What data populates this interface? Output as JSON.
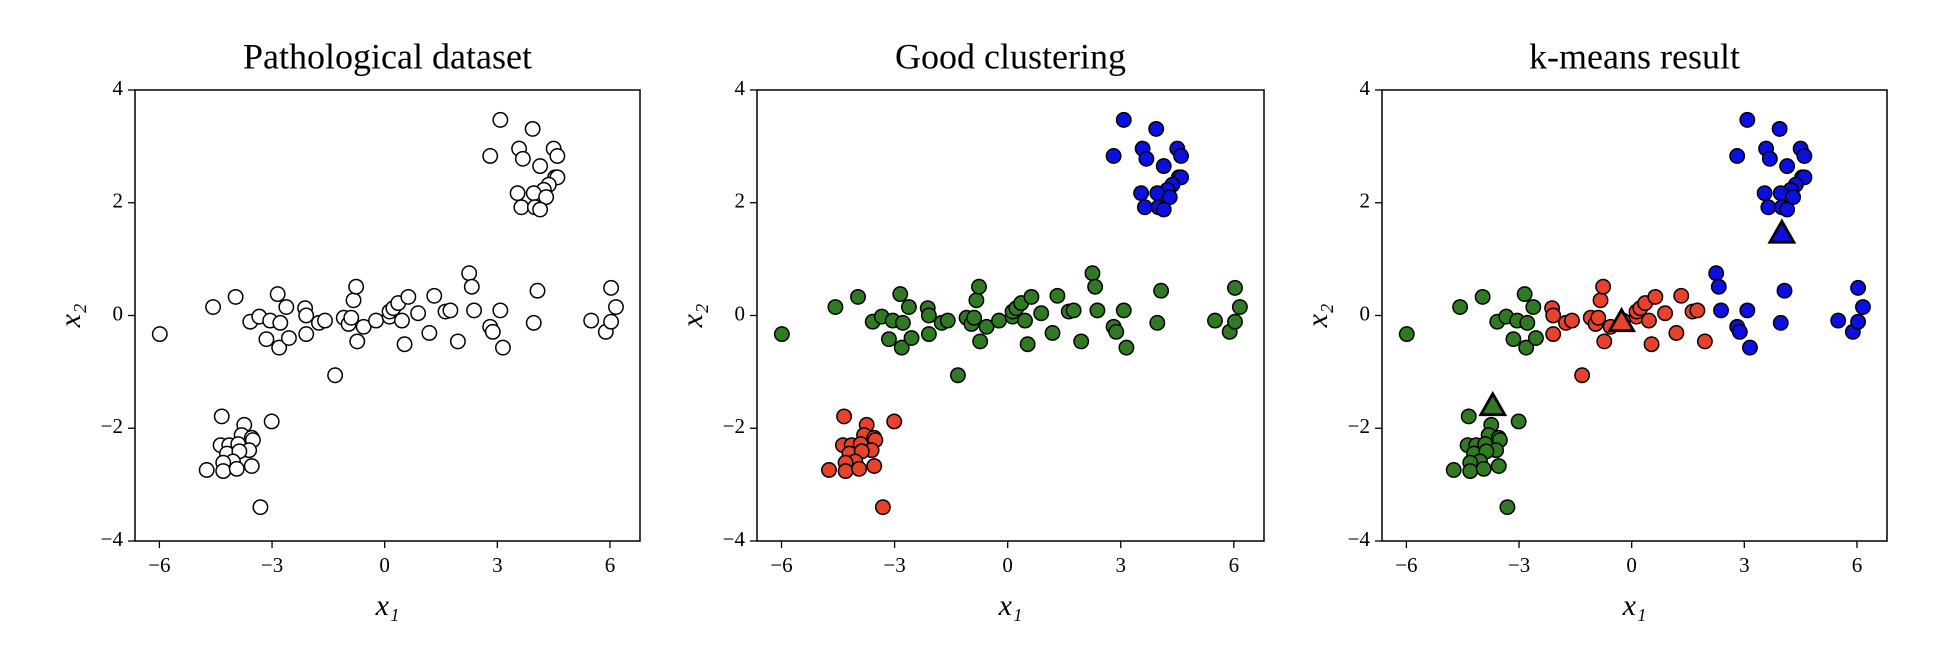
{
  "chart_data": [
    {
      "type": "scatter",
      "title": "Pathological dataset",
      "xlabel": "x₁",
      "ylabel": "x₂",
      "xlim": [
        -6.65,
        6.8
      ],
      "ylim": [
        -4,
        4
      ],
      "xticks": [
        {
          "value": -6,
          "label": "−6"
        },
        {
          "value": -3,
          "label": "−3"
        },
        0,
        3,
        6
      ],
      "yticks": [
        {
          "value": -4,
          "label": "−4"
        },
        {
          "value": -2,
          "label": "−2"
        },
        0,
        2,
        4
      ],
      "series": [
        {
          "color": "#ffffff",
          "marker": "circle",
          "x": [
            3.08,
            3.94,
            2.81,
            3.58,
            4.5,
            3.68,
            4.6,
            4.14,
            4.54,
            4.6,
            4.37,
            4.24,
            3.54,
            3.97,
            4.3,
            3.64,
            4.0,
            4.14,
            -4.34,
            -3.74,
            -3.01,
            -3.81,
            -3.54,
            -4.37,
            -4.14,
            -3.9,
            -3.51,
            -3.61,
            -4.2,
            -3.87,
            -4.04,
            -4.3,
            -3.54,
            -4.74,
            -4.3,
            -3.94,
            -3.31,
            -5.99,
            -4.57,
            -3.97,
            -3.58,
            -3.34,
            -3.15,
            -3.05,
            -2.85,
            -2.81,
            -2.78,
            -2.62,
            -2.55,
            -2.12,
            -2.09,
            -2.09,
            -1.75,
            -1.59,
            -1.32,
            -1.09,
            -0.96,
            -0.89,
            -0.83,
            -0.76,
            -0.73,
            -0.56,
            -0.23,
            0.13,
            0.13,
            0.23,
            0.36,
            0.46,
            0.53,
            0.63,
            0.89,
            1.19,
            1.32,
            1.62,
            1.75,
            1.95,
            2.25,
            2.32,
            2.38,
            2.81,
            2.88,
            3.08,
            3.15,
            3.97,
            4.07,
            5.5,
            5.89,
            6.03,
            6.03,
            6.16
          ],
          "y": [
            3.47,
            3.31,
            2.83,
            2.96,
            2.96,
            2.78,
            2.83,
            2.65,
            2.45,
            2.45,
            2.32,
            2.23,
            2.17,
            2.17,
            2.1,
            1.92,
            1.92,
            1.88,
            -1.79,
            -1.94,
            -1.88,
            -2.12,
            -2.17,
            -2.3,
            -2.3,
            -2.28,
            -2.21,
            -2.39,
            -2.45,
            -2.41,
            -2.59,
            -2.61,
            -2.67,
            -2.74,
            -2.76,
            -2.72,
            -3.4,
            -0.33,
            0.15,
            0.33,
            -0.11,
            -0.02,
            -0.42,
            -0.09,
            0.38,
            -0.57,
            -0.13,
            0.15,
            -0.4,
            0.13,
            0,
            -0.33,
            -0.13,
            -0.09,
            -1.06,
            -0.04,
            -0.15,
            -0.04,
            0.27,
            0.51,
            -0.46,
            -0.2,
            -0.09,
            -0.02,
            0.07,
            0.13,
            0.22,
            -0.09,
            -0.51,
            0.33,
            0.04,
            -0.31,
            0.35,
            0.07,
            0.09,
            -0.46,
            0.75,
            0.51,
            0.09,
            -0.2,
            -0.29,
            0.09,
            -0.57,
            -0.13,
            0.44,
            -0.09,
            -0.29,
            0.49,
            -0.11,
            0.15
          ]
        }
      ]
    },
    {
      "type": "scatter",
      "title": "Good clustering",
      "xlabel": "x₁",
      "ylabel": "x₂",
      "xlim": [
        -6.65,
        6.8
      ],
      "ylim": [
        -4,
        4
      ],
      "xticks": [
        {
          "value": -6,
          "label": "−6"
        },
        {
          "value": -3,
          "label": "−3"
        },
        0,
        3,
        6
      ],
      "yticks": [
        {
          "value": -4,
          "label": "−4"
        },
        {
          "value": -2,
          "label": "−2"
        },
        0,
        2,
        4
      ],
      "series": [
        {
          "color": "#0b0fe0",
          "marker": "circle",
          "x": [
            3.08,
            3.94,
            2.81,
            3.58,
            4.5,
            3.68,
            4.6,
            4.14,
            4.54,
            4.6,
            4.37,
            4.24,
            3.54,
            3.97,
            4.3,
            3.64,
            4.0,
            4.14
          ],
          "y": [
            3.47,
            3.31,
            2.83,
            2.96,
            2.96,
            2.78,
            2.83,
            2.65,
            2.45,
            2.45,
            2.32,
            2.23,
            2.17,
            2.17,
            2.1,
            1.92,
            1.92,
            1.88
          ]
        },
        {
          "color": "#2f7a22",
          "marker": "circle",
          "x": [
            -5.99,
            -4.57,
            -3.97,
            -3.58,
            -3.34,
            -3.15,
            -3.05,
            -2.85,
            -2.81,
            -2.78,
            -2.62,
            -2.55,
            -2.12,
            -2.09,
            -2.09,
            -1.75,
            -1.59,
            -1.32,
            -1.09,
            -0.96,
            -0.89,
            -0.83,
            -0.76,
            -0.73,
            -0.56,
            -0.23,
            0.13,
            0.13,
            0.23,
            0.36,
            0.46,
            0.53,
            0.63,
            0.89,
            1.19,
            1.32,
            1.62,
            1.75,
            1.95,
            2.25,
            2.32,
            2.38,
            2.81,
            2.88,
            3.08,
            3.15,
            3.97,
            4.07,
            5.5,
            5.89,
            6.03,
            6.03,
            6.16
          ],
          "y": [
            -0.33,
            0.15,
            0.33,
            -0.11,
            -0.02,
            -0.42,
            -0.09,
            0.38,
            -0.57,
            -0.13,
            0.15,
            -0.4,
            0.13,
            0,
            -0.33,
            -0.13,
            -0.09,
            -1.06,
            -0.04,
            -0.15,
            -0.04,
            0.27,
            0.51,
            -0.46,
            -0.2,
            -0.09,
            -0.02,
            0.07,
            0.13,
            0.22,
            -0.09,
            -0.51,
            0.33,
            0.04,
            -0.31,
            0.35,
            0.07,
            0.09,
            -0.46,
            0.75,
            0.51,
            0.09,
            -0.2,
            -0.29,
            0.09,
            -0.57,
            -0.13,
            0.44,
            -0.09,
            -0.29,
            0.49,
            -0.11,
            0.15
          ]
        },
        {
          "color": "#e8412c",
          "marker": "circle",
          "x": [
            -4.34,
            -3.74,
            -3.01,
            -3.81,
            -3.54,
            -4.37,
            -4.14,
            -3.9,
            -3.51,
            -3.61,
            -4.2,
            -3.87,
            -4.04,
            -4.3,
            -3.54,
            -4.74,
            -4.3,
            -3.94,
            -3.31
          ],
          "y": [
            -1.79,
            -1.94,
            -1.88,
            -2.12,
            -2.17,
            -2.3,
            -2.3,
            -2.28,
            -2.21,
            -2.39,
            -2.45,
            -2.41,
            -2.59,
            -2.61,
            -2.67,
            -2.74,
            -2.76,
            -2.72,
            -3.4
          ]
        }
      ]
    },
    {
      "type": "scatter",
      "title": "k-means result",
      "xlabel": "x₁",
      "ylabel": "x₂",
      "xlim": [
        -6.65,
        6.8
      ],
      "ylim": [
        -4,
        4
      ],
      "xticks": [
        {
          "value": -6,
          "label": "−6"
        },
        {
          "value": -3,
          "label": "−3"
        },
        0,
        3,
        6
      ],
      "yticks": [
        {
          "value": -4,
          "label": "−4"
        },
        {
          "value": -2,
          "label": "−2"
        },
        0,
        2,
        4
      ],
      "series": [
        {
          "color": "#2f7a22",
          "marker": "circle",
          "x": [
            -4.34,
            -3.74,
            -3.01,
            -3.81,
            -3.54,
            -4.37,
            -4.14,
            -3.9,
            -3.51,
            -3.61,
            -4.2,
            -3.87,
            -4.04,
            -4.3,
            -3.54,
            -4.74,
            -4.3,
            -3.94,
            -3.31,
            -5.99,
            -4.57,
            -3.97,
            -3.58,
            -3.34,
            -3.15,
            -3.05,
            -2.85,
            -2.81,
            -2.78,
            -2.62,
            -2.55
          ],
          "y": [
            -1.79,
            -1.94,
            -1.88,
            -2.12,
            -2.17,
            -2.3,
            -2.3,
            -2.28,
            -2.21,
            -2.39,
            -2.45,
            -2.41,
            -2.59,
            -2.61,
            -2.67,
            -2.74,
            -2.76,
            -2.72,
            -3.4,
            -0.33,
            0.15,
            0.33,
            -0.11,
            -0.02,
            -0.42,
            -0.09,
            0.38,
            -0.57,
            -0.13,
            0.15,
            -0.4
          ]
        },
        {
          "color": "#e8412c",
          "marker": "circle",
          "x": [
            -2.12,
            -2.09,
            -2.09,
            -1.75,
            -1.59,
            -1.32,
            -1.09,
            -0.96,
            -0.89,
            -0.83,
            -0.76,
            -0.73,
            -0.56,
            -0.23,
            0.13,
            0.13,
            0.23,
            0.36,
            0.46,
            0.53,
            0.63,
            0.89,
            1.19,
            1.32,
            1.62,
            1.75,
            1.95
          ],
          "y": [
            0.13,
            0,
            -0.33,
            -0.13,
            -0.09,
            -1.06,
            -0.04,
            -0.15,
            -0.04,
            0.27,
            0.51,
            -0.46,
            -0.2,
            -0.09,
            -0.02,
            0.07,
            0.13,
            0.22,
            -0.09,
            -0.51,
            0.33,
            0.04,
            -0.31,
            0.35,
            0.07,
            0.09,
            -0.46
          ]
        },
        {
          "color": "#0b0fe0",
          "marker": "circle",
          "x": [
            3.08,
            3.94,
            2.81,
            3.58,
            4.5,
            3.68,
            4.6,
            4.14,
            4.54,
            4.6,
            4.37,
            4.24,
            3.54,
            3.97,
            4.3,
            3.64,
            4.0,
            4.14,
            2.25,
            2.32,
            2.38,
            2.81,
            2.88,
            3.08,
            3.15,
            3.97,
            4.07,
            5.5,
            5.89,
            6.03,
            6.03,
            6.16
          ],
          "y": [
            3.47,
            3.31,
            2.83,
            2.96,
            2.96,
            2.78,
            2.83,
            2.65,
            2.45,
            2.45,
            2.32,
            2.23,
            2.17,
            2.17,
            2.1,
            1.92,
            1.92,
            1.88,
            0.75,
            0.51,
            0.09,
            -0.2,
            -0.29,
            0.09,
            -0.57,
            -0.13,
            0.44,
            -0.09,
            -0.29,
            0.49,
            -0.11,
            0.15
          ]
        },
        {
          "color": "#2f7a22",
          "marker": "triangle",
          "x": [
            -3.7
          ],
          "y": [
            -1.6
          ]
        },
        {
          "color": "#e8412c",
          "marker": "triangle",
          "x": [
            -0.27
          ],
          "y": [
            -0.11
          ]
        },
        {
          "color": "#0b0fe0",
          "marker": "triangle",
          "x": [
            4.0
          ],
          "y": [
            1.46
          ]
        }
      ]
    }
  ]
}
